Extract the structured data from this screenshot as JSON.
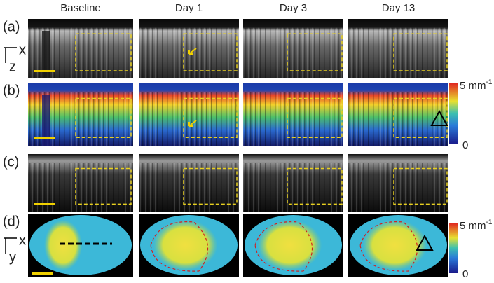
{
  "column_headers": [
    "Baseline",
    "Day 1",
    "Day 3",
    "Day 13"
  ],
  "row_labels": [
    "(a)",
    "(b)",
    "(c)",
    "(d)"
  ],
  "axes": [
    {
      "horizontal": "x",
      "vertical": "z"
    },
    {
      "horizontal": "x",
      "vertical": "y"
    }
  ],
  "colorbars": [
    {
      "max_label": "5 mm",
      "max_exponent": "-1",
      "min_label": "0"
    },
    {
      "max_label": "5 mm",
      "max_exponent": "-1",
      "min_label": "0"
    }
  ]
}
